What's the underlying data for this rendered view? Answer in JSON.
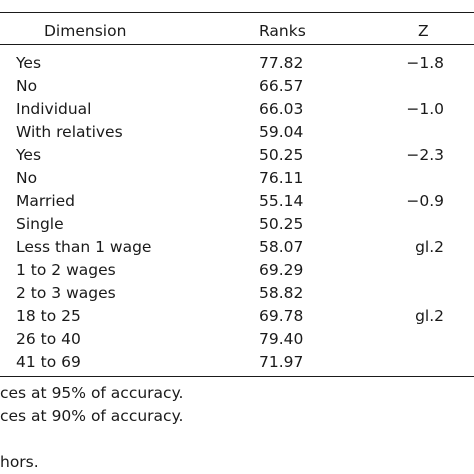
{
  "table": {
    "headers": {
      "dimension": "Dimension",
      "ranks": "Ranks",
      "z": "Z"
    },
    "rows": [
      {
        "dimension": "Yes",
        "ranks": "77.82",
        "z": "−1.8"
      },
      {
        "dimension": "No",
        "ranks": "66.57",
        "z": ""
      },
      {
        "dimension": "Individual",
        "ranks": "66.03",
        "z": "−1.0"
      },
      {
        "dimension": "With relatives",
        "ranks": "59.04",
        "z": ""
      },
      {
        "dimension": "Yes",
        "ranks": "50.25",
        "z": "−2.3"
      },
      {
        "dimension": "No",
        "ranks": "76.11",
        "z": ""
      },
      {
        "dimension": "Married",
        "ranks": "55.14",
        "z": "−0.9"
      },
      {
        "dimension": "Single",
        "ranks": "50.25",
        "z": ""
      },
      {
        "dimension": "Less than 1 wage",
        "ranks": "58.07",
        "z": "gl.2"
      },
      {
        "dimension": "1 to 2 wages",
        "ranks": "69.29",
        "z": ""
      },
      {
        "dimension": "2 to 3 wages",
        "ranks": "58.82",
        "z": ""
      },
      {
        "dimension": "18 to 25",
        "ranks": "69.78",
        "z": "gl.2"
      },
      {
        "dimension": "26 to 40",
        "ranks": "79.40",
        "z": ""
      },
      {
        "dimension": "41 to 69",
        "ranks": "71.97",
        "z": ""
      }
    ]
  },
  "notes": {
    "line1": "ces at 95% of accuracy.",
    "line2": "ces at 90% of accuracy.",
    "line3": "hors."
  }
}
